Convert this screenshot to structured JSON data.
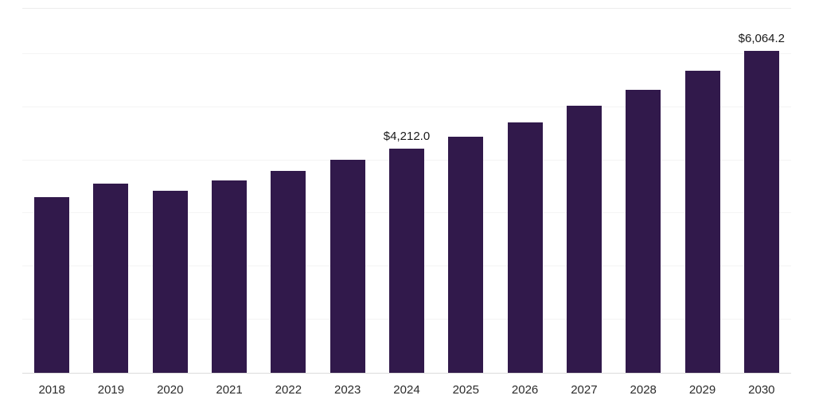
{
  "chart_data": {
    "type": "bar",
    "title": "",
    "xlabel": "",
    "ylabel": "",
    "categories": [
      "2018",
      "2019",
      "2020",
      "2021",
      "2022",
      "2023",
      "2024",
      "2025",
      "2026",
      "2027",
      "2028",
      "2029",
      "2030"
    ],
    "values": [
      3310,
      3560,
      3430,
      3620,
      3800,
      4010,
      4212.0,
      4440,
      4710,
      5020,
      5320,
      5680,
      6064.2
    ],
    "data_labels": {
      "2024": "$4,212.0",
      "2030": "$6,064.2"
    },
    "bar_color": "#31194b",
    "ylim": [
      0,
      6850
    ],
    "grid": true,
    "gridline_step": 1000,
    "legend_position": "none"
  }
}
